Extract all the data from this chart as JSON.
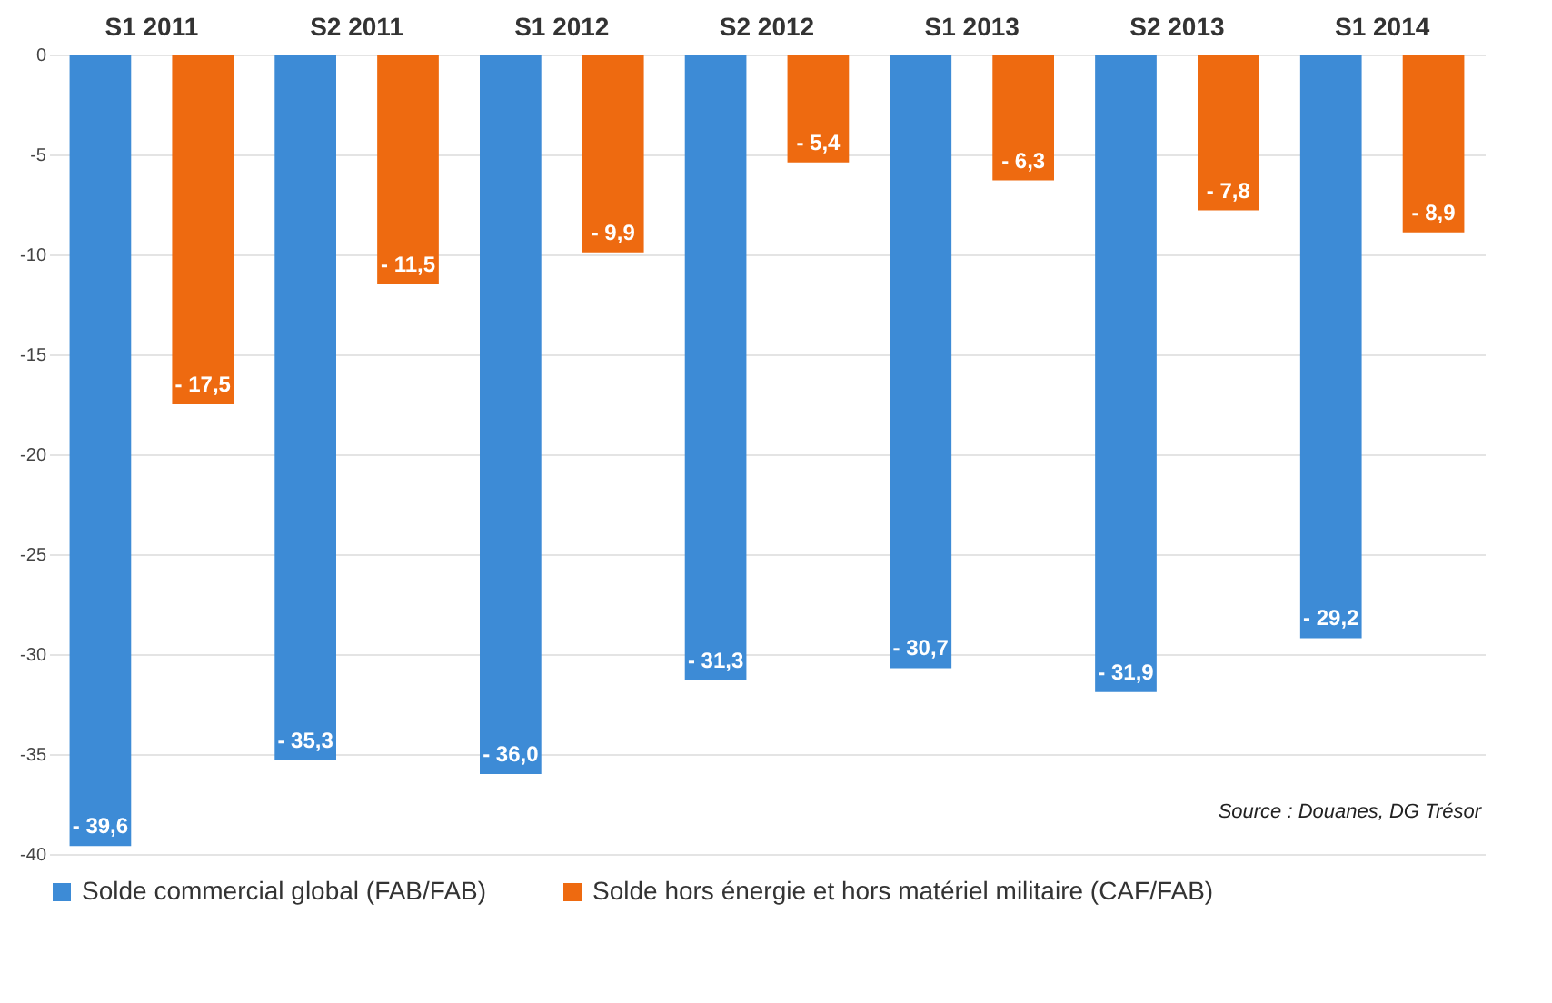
{
  "chart_data": {
    "type": "bar",
    "categories": [
      "S1 2011",
      "S2 2011",
      "S1 2012",
      "S2 2012",
      "S1 2013",
      "S2 2013",
      "S1 2014"
    ],
    "series": [
      {
        "name": "Solde commercial global (FAB/FAB)",
        "color": "#3d8bd6",
        "values": [
          -39.6,
          -35.3,
          -36.0,
          -31.3,
          -30.7,
          -31.9,
          -29.2
        ],
        "value_labels": [
          "- 39,6",
          "- 35,3",
          "- 36,0",
          "- 31,3",
          "- 30,7",
          "- 31,9",
          "- 29,2"
        ]
      },
      {
        "name": "Solde hors énergie et hors matériel militaire (CAF/FAB)",
        "color": "#ee6a10",
        "values": [
          -17.5,
          -11.5,
          -9.9,
          -5.4,
          -6.3,
          -7.8,
          -8.9
        ],
        "value_labels": [
          "- 17,5",
          "- 11,5",
          "- 9,9",
          "- 5,4",
          "- 6,3",
          "- 7,8",
          "- 8,9"
        ]
      }
    ],
    "ylim": [
      -40,
      0
    ],
    "yticks": [
      0,
      -5,
      -10,
      -15,
      -20,
      -25,
      -30,
      -35,
      -40
    ],
    "grid": "y",
    "legend": "bottom",
    "annotations": [
      "Source : Douanes, DG Trésor"
    ]
  }
}
